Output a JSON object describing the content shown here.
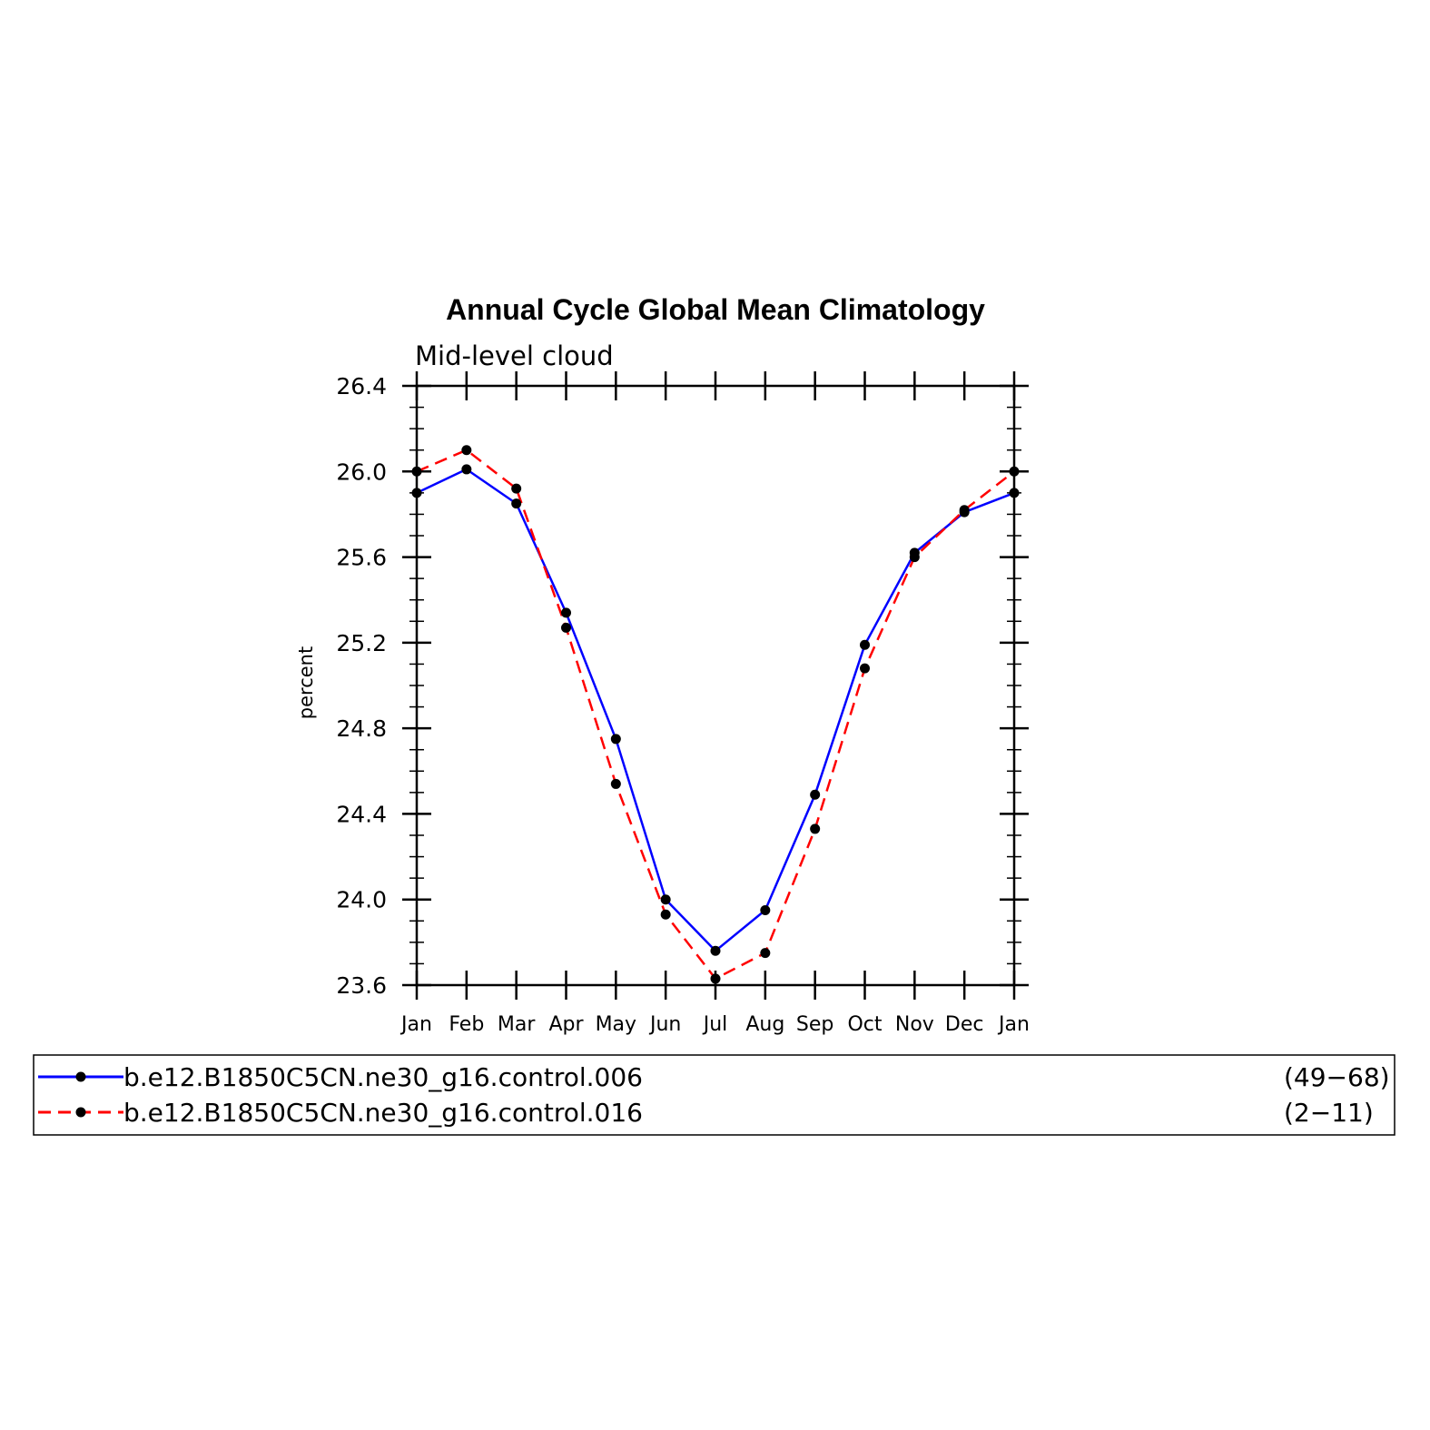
{
  "chart_data": {
    "type": "line",
    "title": "Annual Cycle Global Mean Climatology",
    "subtitle": "Mid-level cloud",
    "ylabel": "percent",
    "xlabel": "",
    "categories": [
      "Jan",
      "Feb",
      "Mar",
      "Apr",
      "May",
      "Jun",
      "Jul",
      "Aug",
      "Sep",
      "Oct",
      "Nov",
      "Dec",
      "Jan"
    ],
    "ylim": [
      23.6,
      26.4
    ],
    "yticks": [
      "23.6",
      "24.0",
      "24.4",
      "24.8",
      "25.2",
      "25.6",
      "26.0",
      "26.4"
    ],
    "grid": false,
    "legend_position": "bottom",
    "series": [
      {
        "name": "b.e12.B1850C5CN.ne30_g16.control.006",
        "years": "(49−68)",
        "color": "#0000ff",
        "dash": "solid",
        "values": [
          25.9,
          26.01,
          25.85,
          25.34,
          24.75,
          24.0,
          23.76,
          23.95,
          24.49,
          25.19,
          25.62,
          25.81,
          25.9
        ]
      },
      {
        "name": "b.e12.B1850C5CN.ne30_g16.control.016",
        "years": "(2−11)",
        "color": "#ff0000",
        "dash": "dashed",
        "values": [
          26.0,
          26.1,
          25.92,
          25.27,
          24.54,
          23.93,
          23.63,
          23.75,
          24.33,
          25.08,
          25.6,
          25.82,
          26.0
        ]
      }
    ]
  }
}
